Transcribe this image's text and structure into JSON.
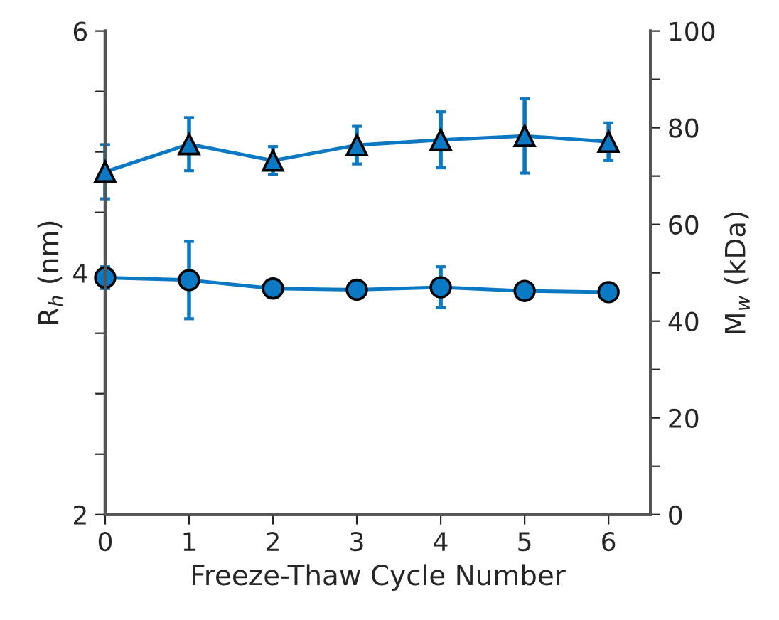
{
  "chart_data": {
    "type": "line",
    "xlabel": "Freeze-Thaw Cycle Number",
    "ylabel": "R$_{h}$ (nm)",
    "y2label": "M$_{w}$ (kDa)",
    "x": [
      0,
      1,
      2,
      3,
      4,
      5,
      6
    ],
    "xlim": [
      0,
      6.5
    ],
    "xticks": [
      0,
      1,
      2,
      3,
      4,
      5,
      6
    ],
    "ylim": [
      2,
      6
    ],
    "yticks": [
      2,
      {
        "value": 2.5,
        "label": null
      },
      {
        "value": 3,
        "label": null
      },
      {
        "value": 3.5,
        "label": null
      },
      4,
      {
        "value": 4.5,
        "label": null
      },
      {
        "value": 5,
        "label": null
      },
      {
        "value": 5.5,
        "label": null
      },
      6
    ],
    "y2lim": [
      0,
      100
    ],
    "y2ticks": [
      0,
      {
        "value": 10,
        "label": null
      },
      20,
      {
        "value": 30,
        "label": null
      },
      40,
      {
        "value": 50,
        "label": null
      },
      60,
      {
        "value": 70,
        "label": null
      },
      80,
      {
        "value": 90,
        "label": null
      },
      100
    ],
    "series": [
      {
        "color": "#0a78c2",
        "marker": "circle",
        "values": [
          3.96,
          3.94,
          3.87,
          3.86,
          3.88,
          3.85,
          3.84
        ],
        "errors": [
          0.09,
          0.32,
          null,
          null,
          0.17,
          null,
          null
        ]
      },
      {
        "color": "#0a78c2",
        "marker": "triangle",
        "axis": "y2",
        "values": [
          70.9,
          76.6,
          73.2,
          76.4,
          77.5,
          78.3,
          77.1
        ],
        "errors": [
          5.6,
          5.5,
          2.9,
          3.9,
          5.8,
          7.7,
          3.9
        ]
      }
    ],
    "grid": false,
    "legend": false,
    "line_style": "solid"
  }
}
